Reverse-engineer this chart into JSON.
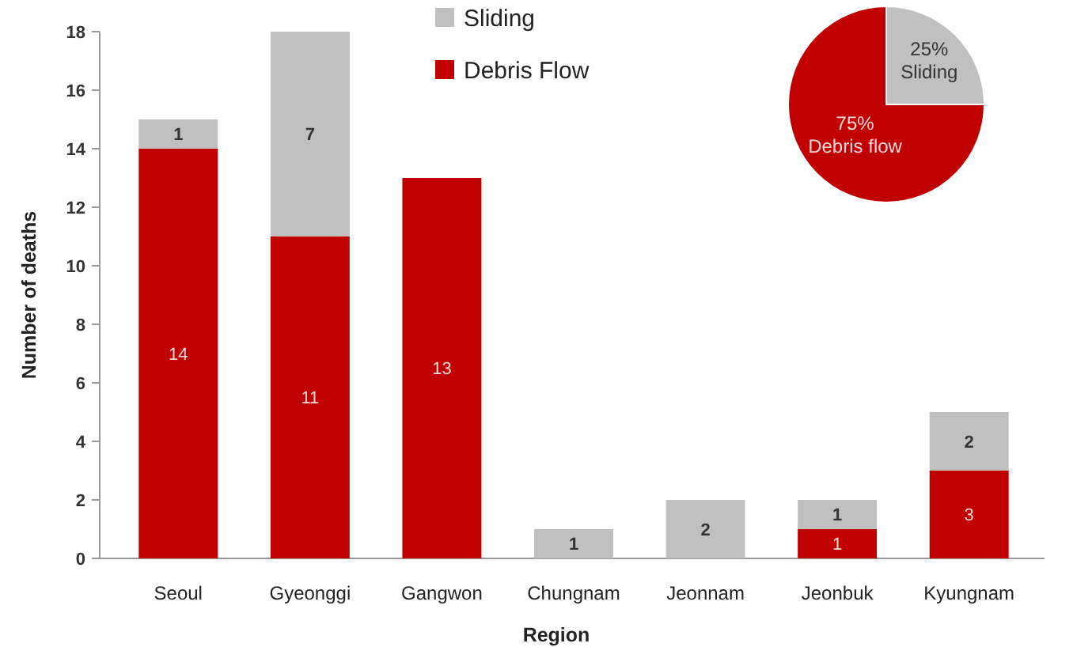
{
  "chart_data": [
    {
      "type": "bar",
      "xlabel": "Region",
      "ylabel": "Number of deaths",
      "categories": [
        "Seoul",
        "Gyeonggi",
        "Gangwon",
        "Chungnam",
        "Jeonnam",
        "Jeonbuk",
        "Kyungnam"
      ],
      "series": [
        {
          "name": "Debris Flow",
          "color": "#c00000",
          "values": [
            14,
            11,
            13,
            0,
            0,
            1,
            3
          ],
          "value_labels": [
            "14",
            "11",
            "13",
            null,
            null,
            "1",
            "3"
          ]
        },
        {
          "name": "Sliding",
          "color": "#c0c0c0",
          "values": [
            1,
            7,
            0,
            1,
            2,
            1,
            2
          ],
          "value_labels": [
            "1",
            "7",
            null,
            "1",
            "2",
            "1",
            "2"
          ]
        }
      ],
      "stacked": true,
      "ylim": [
        0,
        18
      ],
      "yticks": [
        0,
        2,
        4,
        6,
        8,
        10,
        12,
        14,
        16,
        18
      ],
      "legend": "top"
    },
    {
      "type": "pie",
      "categories": [
        "Sliding",
        "Debris flow"
      ],
      "values": [
        25,
        75
      ],
      "colors": [
        "#c0c0c0",
        "#c00000"
      ],
      "value_labels": [
        "25%",
        "75%"
      ]
    }
  ]
}
